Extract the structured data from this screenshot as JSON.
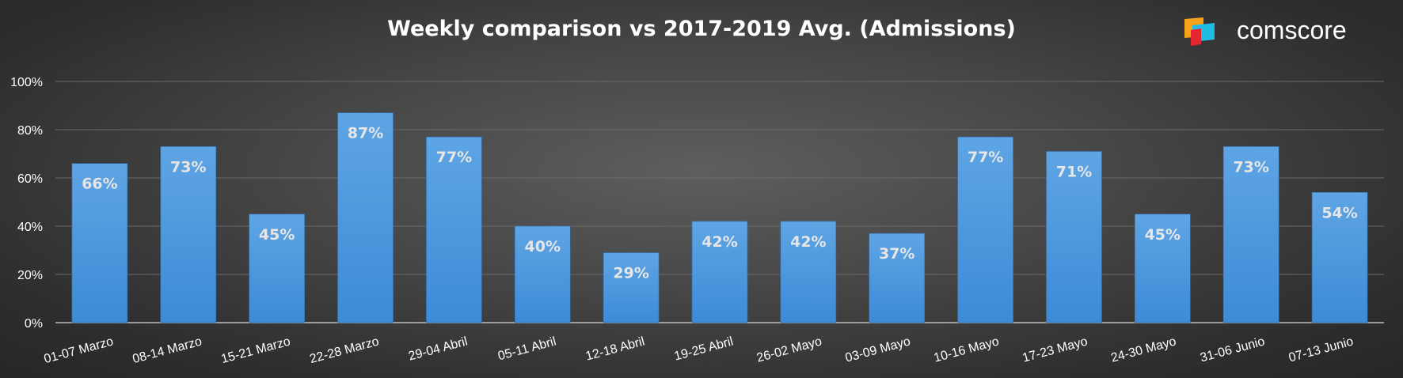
{
  "brand": {
    "name": "comscore",
    "logo_colors": [
      "#f7a21b",
      "#e3262f",
      "#1ebde3"
    ]
  },
  "chart_data": {
    "type": "bar",
    "title": "Weekly comparison vs 2017-2019 Avg. (Admissions)",
    "xlabel": "",
    "ylabel": "",
    "ylim": [
      0,
      1.0
    ],
    "y_ticks": [
      0,
      0.2,
      0.4,
      0.6,
      0.8,
      1.0
    ],
    "y_tick_labels": [
      "0%",
      "20%",
      "40%",
      "60%",
      "80%",
      "100%"
    ],
    "grid": true,
    "legend": "none",
    "bar_color": "#4a97dc",
    "categories": [
      "01-07 Marzo",
      "08-14 Marzo",
      "15-21 Marzo",
      "22-28 Marzo",
      "29-04 Abril",
      "05-11 Abril",
      "12-18 Abril",
      "19-25 Abril",
      "26-02 Mayo",
      "03-09 Mayo",
      "10-16 Mayo",
      "17-23 Mayo",
      "24-30 Mayo",
      "31-06 Junio",
      "07-13 Junio"
    ],
    "values": [
      0.66,
      0.73,
      0.45,
      0.87,
      0.77,
      0.4,
      0.29,
      0.42,
      0.42,
      0.37,
      0.77,
      0.71,
      0.45,
      0.73,
      0.54
    ],
    "data_labels": [
      "66%",
      "73%",
      "45%",
      "87%",
      "77%",
      "40%",
      "29%",
      "42%",
      "42%",
      "37%",
      "77%",
      "71%",
      "45%",
      "73%",
      "54%"
    ]
  }
}
